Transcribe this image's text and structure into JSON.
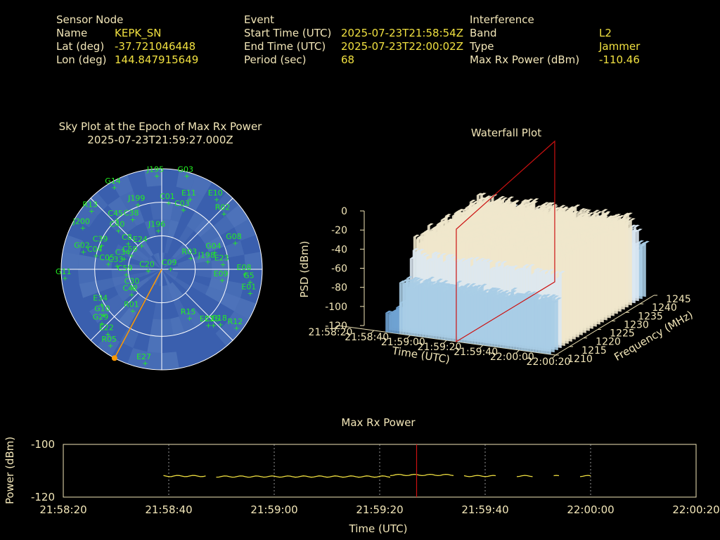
{
  "header": {
    "sensor": {
      "heading": "Sensor Node",
      "rows": [
        {
          "label": "Name",
          "value": "KEPK_SN"
        },
        {
          "label": "Lat (deg)",
          "value": "-37.721046448"
        },
        {
          "label": "Lon (deg)",
          "value": "144.847915649"
        }
      ]
    },
    "event": {
      "heading": "Event",
      "rows": [
        {
          "label": "Start Time (UTC)",
          "value": "2025-07-23T21:58:54Z"
        },
        {
          "label": "End Time (UTC)",
          "value": "2025-07-23T22:00:02Z"
        },
        {
          "label": "Period (sec)",
          "value": "68"
        }
      ]
    },
    "interference": {
      "heading": "Interference",
      "rows": [
        {
          "label": "Band",
          "value": "L2"
        },
        {
          "label": "Type",
          "value": "Jammer"
        },
        {
          "label": "Max Rx Power (dBm)",
          "value": "-110.46"
        }
      ]
    }
  },
  "colors": {
    "label": "#f2e6b8",
    "value": "#f0e040",
    "sat": "#22ee22",
    "grid": "#ffffff",
    "marker": "#cc1111",
    "trace": "#f0e040",
    "jam": "#ff9900"
  },
  "chart_data": [
    {
      "type": "polar-sky",
      "title": "Sky Plot at the Epoch of Max Rx Power",
      "subtitle": "2025-07-23T21:59:27.000Z",
      "satellites": [
        {
          "id": "J195",
          "az": 357,
          "el": 6
        },
        {
          "id": "G03",
          "az": 15,
          "el": 3
        },
        {
          "id": "G14",
          "az": 330,
          "el": 5
        },
        {
          "id": "E10",
          "az": 38,
          "el": 10
        },
        {
          "id": "R13",
          "az": 310,
          "el": 8
        },
        {
          "id": "E11",
          "az": 22,
          "el": 22
        },
        {
          "id": "R02",
          "az": 48,
          "el": 15
        },
        {
          "id": "J199",
          "az": 340,
          "el": 28
        },
        {
          "id": "C01",
          "az": 6,
          "el": 30
        },
        {
          "id": "C03",
          "az": 20,
          "el": 33
        },
        {
          "id": "J200",
          "az": 298,
          "el": 10
        },
        {
          "id": "C45",
          "az": 318,
          "el": 30
        },
        {
          "id": "C38",
          "az": 330,
          "el": 38
        },
        {
          "id": "C40",
          "az": 312,
          "el": 38
        },
        {
          "id": "G08",
          "az": 70,
          "el": 20
        },
        {
          "id": "G02",
          "az": 283,
          "el": 18
        },
        {
          "id": "C39",
          "az": 292,
          "el": 32
        },
        {
          "id": "J196",
          "az": 355,
          "el": 55
        },
        {
          "id": "C8",
          "az": 308,
          "el": 52
        },
        {
          "id": "G04",
          "az": 72,
          "el": 40
        },
        {
          "id": "R03",
          "az": 68,
          "el": 62
        },
        {
          "id": "J198",
          "az": 80,
          "el": 48
        },
        {
          "id": "E23",
          "az": 85,
          "el": 35
        },
        {
          "id": "C04",
          "az": 282,
          "el": 30
        },
        {
          "id": "C05",
          "az": 276,
          "el": 42
        },
        {
          "id": "C34",
          "az": 286,
          "el": 55
        },
        {
          "id": "C33",
          "az": 275,
          "el": 50
        },
        {
          "id": "C59",
          "az": 295,
          "el": 60
        },
        {
          "id": "E24",
          "az": 320,
          "el": 62
        },
        {
          "id": "E08",
          "az": 93,
          "el": 15
        },
        {
          "id": "E09",
          "az": 100,
          "el": 35
        },
        {
          "id": "G5",
          "az": 98,
          "el": 10
        },
        {
          "id": "E01",
          "az": 105,
          "el": 8
        },
        {
          "id": "G11",
          "az": 265,
          "el": 3
        },
        {
          "id": "C09",
          "az": 85,
          "el": 82
        },
        {
          "id": "C20",
          "az": 265,
          "el": 78
        },
        {
          "id": "C59b",
          "az": 262,
          "el": 58
        },
        {
          "id": "C30",
          "az": 238,
          "el": 60
        },
        {
          "id": "C42",
          "az": 230,
          "el": 55
        },
        {
          "id": "E34",
          "az": 240,
          "el": 28
        },
        {
          "id": "R01",
          "az": 215,
          "el": 45
        },
        {
          "id": "R15",
          "az": 150,
          "el": 40
        },
        {
          "id": "E21",
          "az": 140,
          "el": 25
        },
        {
          "id": "C25",
          "az": 137,
          "el": 22
        },
        {
          "id": "G18",
          "az": 133,
          "el": 18
        },
        {
          "id": "G10",
          "az": 232,
          "el": 24
        },
        {
          "id": "G29",
          "az": 228,
          "el": 18
        },
        {
          "id": "E22",
          "az": 220,
          "el": 15
        },
        {
          "id": "R12",
          "az": 128,
          "el": 5
        },
        {
          "id": "R05",
          "az": 214,
          "el": 8
        },
        {
          "id": "E27",
          "az": 190,
          "el": 5
        }
      ],
      "jammer": {
        "az": 208,
        "el": 0
      }
    },
    {
      "type": "surface-3d",
      "title": "Waterfall Plot",
      "zlabel": "PSD (dBm)",
      "xlabel": "Time (UTC)",
      "ylabel": "Frequency (MHz)",
      "zticks": [
        "0",
        "-20",
        "-40",
        "-60",
        "-80",
        "-100",
        "-120"
      ],
      "xticks": [
        "21:58:20",
        "21:58:40",
        "21:59:00",
        "21:59:20",
        "21:59:40",
        "22:00:00",
        "22:00:20"
      ],
      "yticks": [
        "1210",
        "1215",
        "1220",
        "1225",
        "1230",
        "1235",
        "1240",
        "1245"
      ],
      "zlim": [
        -120,
        0
      ],
      "ylim": [
        1210,
        1245
      ],
      "marker_time": "21:59:27"
    },
    {
      "type": "line",
      "title": "Max Rx Power",
      "xlabel": "Time (UTC)",
      "ylabel": "Power (dBm)",
      "xticks": [
        "21:58:20",
        "21:58:40",
        "21:59:00",
        "21:59:20",
        "21:59:40",
        "22:00:00",
        "22:00:20"
      ],
      "yticks": [
        "-100",
        "-120"
      ],
      "ylim": [
        -120,
        -100
      ],
      "marker_time_s": 67,
      "segments": [
        {
          "t0": 19,
          "t1": 27,
          "y": -112.0
        },
        {
          "t0": 29,
          "t1": 62,
          "y": -112.2
        },
        {
          "t0": 62,
          "t1": 74,
          "y": -111.6
        },
        {
          "t0": 76,
          "t1": 82,
          "y": -112.0
        },
        {
          "t0": 86,
          "t1": 89,
          "y": -112.0
        },
        {
          "t0": 93,
          "t1": 94,
          "y": -112.0
        },
        {
          "t0": 98,
          "t1": 100,
          "y": -112.0
        }
      ]
    }
  ]
}
